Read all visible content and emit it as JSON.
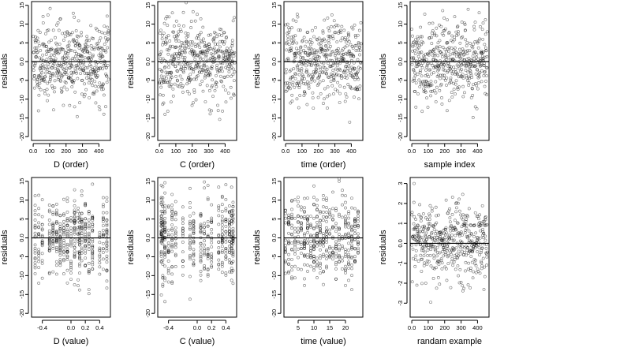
{
  "chart_data": [
    {
      "type": "scatter",
      "xlabel": "D (order)",
      "ylabel": "residuals",
      "xlim": [
        -10,
        470
      ],
      "ylim": [
        -21,
        16
      ],
      "xticks": [
        0,
        100,
        200,
        300,
        400
      ],
      "yticks": [
        -20,
        -15,
        -10,
        -5,
        0,
        5,
        10,
        15
      ],
      "reference_line_y": 0,
      "gen": {
        "kind": "order",
        "n": 460,
        "sd": 5.2,
        "seed": 11
      }
    },
    {
      "type": "scatter",
      "xlabel": "C (order)",
      "ylabel": "residuals",
      "xlim": [
        -10,
        470
      ],
      "ylim": [
        -21,
        16
      ],
      "xticks": [
        0,
        100,
        200,
        300,
        400
      ],
      "yticks": [
        -20,
        -15,
        -10,
        -5,
        0,
        5,
        10,
        15
      ],
      "reference_line_y": 0,
      "gen": {
        "kind": "order",
        "n": 460,
        "sd": 5.2,
        "seed": 23
      }
    },
    {
      "type": "scatter",
      "xlabel": "time (order)",
      "ylabel": "residuals",
      "xlim": [
        -10,
        470
      ],
      "ylim": [
        -21,
        16
      ],
      "xticks": [
        0,
        100,
        200,
        300,
        400
      ],
      "yticks": [
        -20,
        -15,
        -10,
        -5,
        0,
        5,
        10,
        15
      ],
      "reference_line_y": 0,
      "gen": {
        "kind": "order",
        "n": 460,
        "sd": 5.2,
        "seed": 37
      }
    },
    {
      "type": "scatter",
      "xlabel": "sample index",
      "ylabel": "residuals",
      "xlim": [
        -10,
        470
      ],
      "ylim": [
        -21,
        16
      ],
      "xticks": [
        0,
        100,
        200,
        300,
        400
      ],
      "yticks": [
        -20,
        -15,
        -10,
        -5,
        0,
        5,
        10,
        15
      ],
      "reference_line_y": 0,
      "gen": {
        "kind": "order",
        "n": 460,
        "sd": 5.2,
        "seed": 41
      }
    },
    {
      "type": "scatter",
      "xlabel": "D (value)",
      "ylabel": "residuals",
      "xlim": [
        -0.55,
        0.55
      ],
      "ylim": [
        -21,
        16
      ],
      "xticks": [
        -0.4,
        0.0,
        0.2,
        0.4
      ],
      "yticks": [
        -20,
        -15,
        -10,
        -5,
        0,
        5,
        10,
        15
      ],
      "reference_line_y": 0,
      "gen": {
        "kind": "value",
        "n": 460,
        "sd": 5.2,
        "seed": 53,
        "xvals": [
          -0.5,
          -0.45,
          -0.4,
          -0.3,
          -0.25,
          -0.2,
          -0.15,
          -0.1,
          -0.05,
          0.0,
          0.05,
          0.1,
          0.12,
          0.15,
          0.2,
          0.25,
          0.3,
          0.4,
          0.45,
          0.5
        ]
      }
    },
    {
      "type": "scatter",
      "xlabel": "C (value)",
      "ylabel": "residuals",
      "xlim": [
        -0.55,
        0.55
      ],
      "ylim": [
        -21,
        16
      ],
      "xticks": [
        -0.4,
        0.0,
        0.2,
        0.4
      ],
      "yticks": [
        -20,
        -15,
        -10,
        -5,
        0,
        5,
        10,
        15
      ],
      "reference_line_y": 0,
      "gen": {
        "kind": "value",
        "n": 460,
        "sd": 5.2,
        "seed": 67,
        "xvals": [
          -0.5,
          -0.48,
          -0.45,
          -0.4,
          -0.35,
          -0.3,
          -0.2,
          -0.1,
          -0.05,
          0.05,
          0.1,
          0.15,
          0.2,
          0.3,
          0.35,
          0.4,
          0.45,
          0.48,
          0.5
        ]
      }
    },
    {
      "type": "scatter",
      "xlabel": "time (value)",
      "ylabel": "residuals",
      "xlim": [
        0.5,
        25.5
      ],
      "ylim": [
        -21,
        16
      ],
      "xticks": [
        5,
        10,
        15,
        20
      ],
      "yticks": [
        -20,
        -15,
        -10,
        -5,
        0,
        5,
        10,
        15
      ],
      "reference_line_y": 0,
      "gen": {
        "kind": "value",
        "n": 460,
        "sd": 5.2,
        "seed": 79,
        "xvals": [
          1,
          2,
          3,
          4,
          5,
          6,
          7,
          8,
          9,
          10,
          11,
          12,
          13,
          14,
          15,
          16,
          17,
          18,
          19,
          20,
          21,
          22,
          23,
          24
        ]
      }
    },
    {
      "type": "scatter",
      "xlabel": "randam example",
      "ylabel": "residuals",
      "xlim": [
        -10,
        470
      ],
      "ylim": [
        -3.7,
        3.3
      ],
      "xticks": [
        0,
        100,
        200,
        300,
        400
      ],
      "yticks": [
        -3,
        -2,
        -1,
        0,
        1,
        2,
        3
      ],
      "reference_line_y": 0,
      "gen": {
        "kind": "order",
        "n": 460,
        "sd": 1.0,
        "seed": 97
      }
    }
  ]
}
